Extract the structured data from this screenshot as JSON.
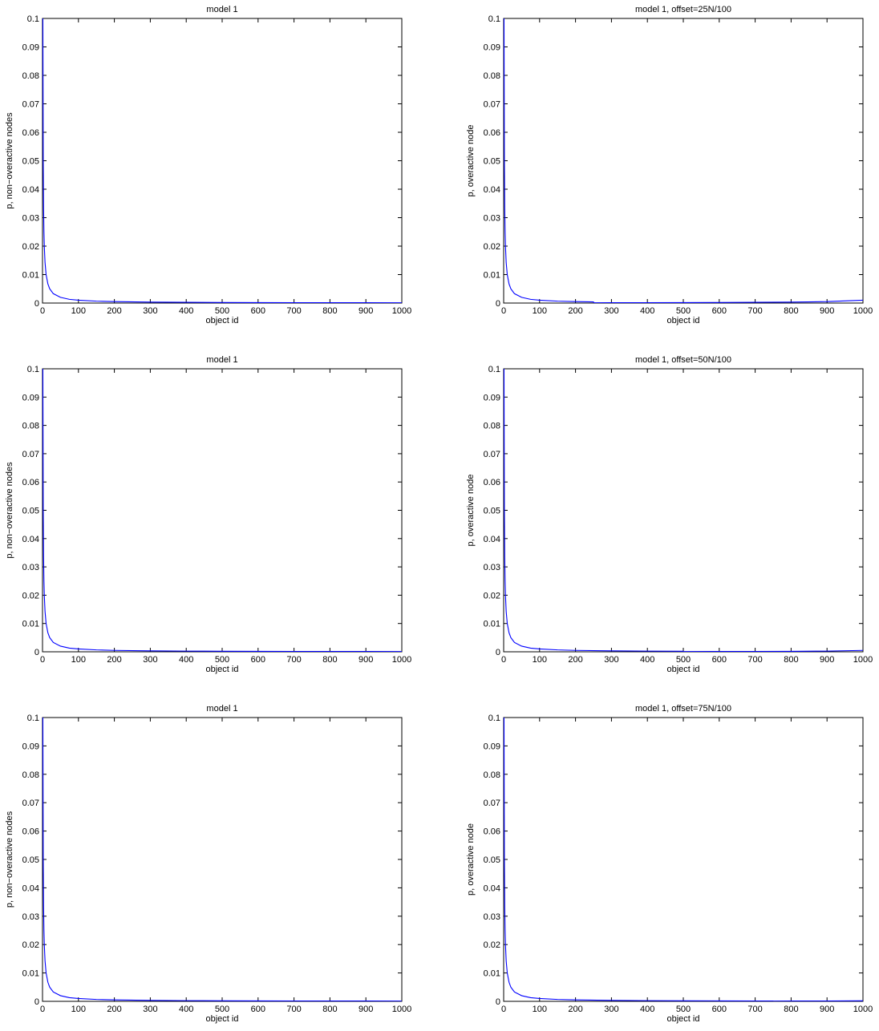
{
  "chart_data": [
    {
      "type": "line",
      "title": "model 1",
      "xlabel": "object id",
      "ylabel": "p, non−overactive nodes",
      "xlim": [
        0,
        1000
      ],
      "ylim": [
        0,
        0.1
      ],
      "xticks": [
        "0",
        "100",
        "200",
        "300",
        "400",
        "500",
        "600",
        "700",
        "800",
        "900",
        "1000"
      ],
      "yticks": [
        "0",
        "0.01",
        "0.02",
        "0.03",
        "0.04",
        "0.05",
        "0.06",
        "0.07",
        "0.08",
        "0.09",
        "0.1"
      ],
      "grid": false,
      "series": [
        {
          "color": "#0000ff",
          "x": [
            1,
            2,
            3,
            4,
            5,
            7,
            10,
            15,
            20,
            30,
            50,
            75,
            100,
            150,
            200,
            300,
            400,
            500,
            600,
            700,
            800,
            900,
            1000
          ],
          "y": [
            0.1,
            0.05,
            0.0333,
            0.025,
            0.02,
            0.0143,
            0.01,
            0.0067,
            0.005,
            0.0033,
            0.002,
            0.0013,
            0.001,
            0.00067,
            0.0005,
            0.00033,
            0.00025,
            0.0002,
            0.00017,
            0.00014,
            0.000125,
            0.00011,
            0.0001
          ]
        }
      ]
    },
    {
      "type": "line",
      "title": "model 1, offset=25N/100",
      "xlabel": "object id",
      "ylabel": "p, overactive node",
      "xlim": [
        0,
        1000
      ],
      "ylim": [
        0,
        0.1
      ],
      "xticks": [
        "0",
        "100",
        "200",
        "300",
        "400",
        "500",
        "600",
        "700",
        "800",
        "900",
        "1000"
      ],
      "yticks": [
        "0",
        "0.01",
        "0.02",
        "0.03",
        "0.04",
        "0.05",
        "0.06",
        "0.07",
        "0.08",
        "0.09",
        "0.1"
      ],
      "grid": false,
      "series": [
        {
          "color": "#0000ff",
          "x": [
            1,
            2,
            3,
            4,
            5,
            7,
            10,
            15,
            20,
            30,
            50,
            75,
            100,
            150,
            200,
            250,
            251,
            300,
            400,
            500,
            600,
            700,
            800,
            900,
            1000
          ],
          "y": [
            0.1,
            0.05,
            0.0333,
            0.025,
            0.02,
            0.0143,
            0.01,
            0.0067,
            0.005,
            0.0033,
            0.002,
            0.0013,
            0.001,
            0.00067,
            0.0005,
            0.0004,
            0.0001,
            0.00011,
            0.00013,
            0.00016,
            0.0002,
            0.00025,
            0.00033,
            0.0005,
            0.001
          ]
        }
      ]
    },
    {
      "type": "line",
      "title": "model 1",
      "xlabel": "object id",
      "ylabel": "p, non−overactive nodes",
      "xlim": [
        0,
        1000
      ],
      "ylim": [
        0,
        0.1
      ],
      "xticks": [
        "0",
        "100",
        "200",
        "300",
        "400",
        "500",
        "600",
        "700",
        "800",
        "900",
        "1000"
      ],
      "yticks": [
        "0",
        "0.01",
        "0.02",
        "0.03",
        "0.04",
        "0.05",
        "0.06",
        "0.07",
        "0.08",
        "0.09",
        "0.1"
      ],
      "grid": false,
      "series": [
        {
          "color": "#0000ff",
          "x": [
            1,
            2,
            3,
            4,
            5,
            7,
            10,
            15,
            20,
            30,
            50,
            75,
            100,
            150,
            200,
            300,
            400,
            500,
            600,
            700,
            800,
            900,
            1000
          ],
          "y": [
            0.1,
            0.05,
            0.0333,
            0.025,
            0.02,
            0.0143,
            0.01,
            0.0067,
            0.005,
            0.0033,
            0.002,
            0.0013,
            0.001,
            0.00067,
            0.0005,
            0.00033,
            0.00025,
            0.0002,
            0.00017,
            0.00014,
            0.000125,
            0.00011,
            0.0001
          ]
        }
      ]
    },
    {
      "type": "line",
      "title": "model 1, offset=50N/100",
      "xlabel": "object id",
      "ylabel": "p, overactive node",
      "xlim": [
        0,
        1000
      ],
      "ylim": [
        0,
        0.1
      ],
      "xticks": [
        "0",
        "100",
        "200",
        "300",
        "400",
        "500",
        "600",
        "700",
        "800",
        "900",
        "1000"
      ],
      "yticks": [
        "0",
        "0.01",
        "0.02",
        "0.03",
        "0.04",
        "0.05",
        "0.06",
        "0.07",
        "0.08",
        "0.09",
        "0.1"
      ],
      "grid": false,
      "series": [
        {
          "color": "#0000ff",
          "x": [
            1,
            2,
            3,
            4,
            5,
            7,
            10,
            15,
            20,
            30,
            50,
            75,
            100,
            150,
            200,
            300,
            400,
            500,
            501,
            600,
            700,
            800,
            900,
            1000
          ],
          "y": [
            0.1,
            0.05,
            0.0333,
            0.025,
            0.02,
            0.0143,
            0.01,
            0.0067,
            0.005,
            0.0033,
            0.002,
            0.0013,
            0.001,
            0.00067,
            0.0005,
            0.00033,
            0.00025,
            0.0002,
            0.0001,
            0.00012,
            0.00014,
            0.00017,
            0.00025,
            0.0005
          ]
        }
      ]
    },
    {
      "type": "line",
      "title": "model 1",
      "xlabel": "object id",
      "ylabel": "p, non−overactive nodes",
      "xlim": [
        0,
        1000
      ],
      "ylim": [
        0,
        0.1
      ],
      "xticks": [
        "0",
        "100",
        "200",
        "300",
        "400",
        "500",
        "600",
        "700",
        "800",
        "900",
        "1000"
      ],
      "yticks": [
        "0",
        "0.01",
        "0.02",
        "0.03",
        "0.04",
        "0.05",
        "0.06",
        "0.07",
        "0.08",
        "0.09",
        "0.1"
      ],
      "grid": false,
      "series": [
        {
          "color": "#0000ff",
          "x": [
            1,
            2,
            3,
            4,
            5,
            7,
            10,
            15,
            20,
            30,
            50,
            75,
            100,
            150,
            200,
            300,
            400,
            500,
            600,
            700,
            800,
            900,
            1000
          ],
          "y": [
            0.1,
            0.05,
            0.0333,
            0.025,
            0.02,
            0.0143,
            0.01,
            0.0067,
            0.005,
            0.0033,
            0.002,
            0.0013,
            0.001,
            0.00067,
            0.0005,
            0.00033,
            0.00025,
            0.0002,
            0.00017,
            0.00014,
            0.000125,
            0.00011,
            0.0001
          ]
        }
      ]
    },
    {
      "type": "line",
      "title": "model 1, offset=75N/100",
      "xlabel": "object id",
      "ylabel": "p, overactive node",
      "xlim": [
        0,
        1000
      ],
      "ylim": [
        0,
        0.1
      ],
      "xticks": [
        "0",
        "100",
        "200",
        "300",
        "400",
        "500",
        "600",
        "700",
        "800",
        "900",
        "1000"
      ],
      "yticks": [
        "0",
        "0.01",
        "0.02",
        "0.03",
        "0.04",
        "0.05",
        "0.06",
        "0.07",
        "0.08",
        "0.09",
        "0.1"
      ],
      "grid": false,
      "series": [
        {
          "color": "#0000ff",
          "x": [
            1,
            2,
            3,
            4,
            5,
            7,
            10,
            15,
            20,
            30,
            50,
            75,
            100,
            150,
            200,
            300,
            400,
            500,
            600,
            700,
            750,
            751,
            800,
            900,
            1000
          ],
          "y": [
            0.1,
            0.05,
            0.0333,
            0.025,
            0.02,
            0.0143,
            0.01,
            0.0067,
            0.005,
            0.0033,
            0.002,
            0.0013,
            0.001,
            0.00067,
            0.0005,
            0.00033,
            0.00025,
            0.0002,
            0.00017,
            0.00014,
            0.00013,
            0.0001,
            0.00011,
            0.00014,
            0.0002
          ]
        }
      ]
    }
  ]
}
